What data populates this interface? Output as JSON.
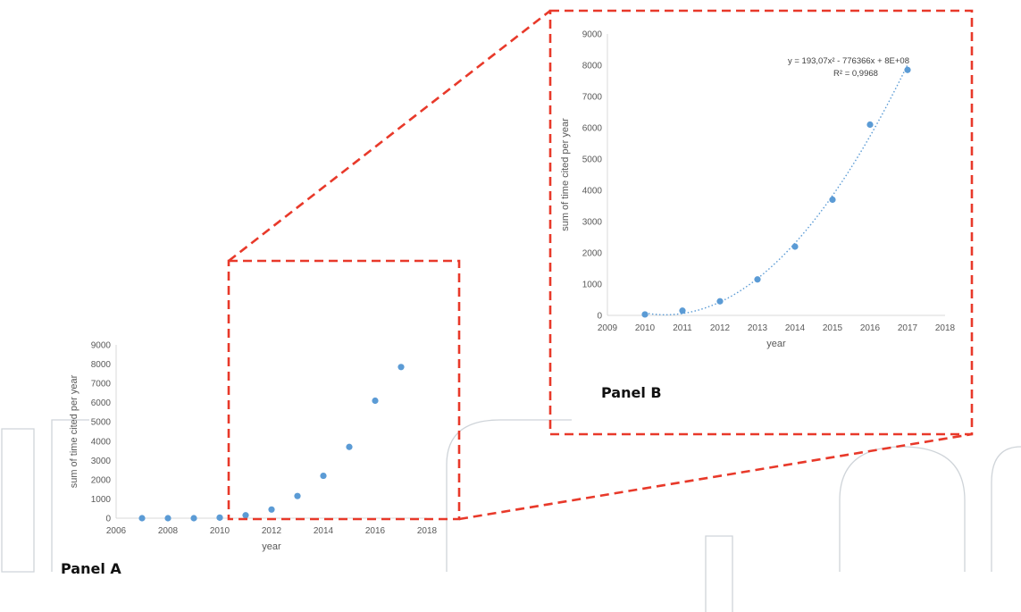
{
  "colors": {
    "point": "#5b9bd5",
    "trend": "#5b9bd5",
    "zoom_box": "#e8392a",
    "axis": "#d9d9d9",
    "text": "#595959"
  },
  "chart_data": [
    {
      "type": "scatter",
      "panel_label": "Panel A",
      "title": "",
      "xlabel": "year",
      "ylabel": "sum of time cited per year",
      "xlim": [
        2006,
        2018
      ],
      "ylim": [
        0,
        9000
      ],
      "x_ticks": [
        2006,
        2008,
        2010,
        2012,
        2014,
        2016,
        2018
      ],
      "y_ticks": [
        0,
        1000,
        2000,
        3000,
        4000,
        5000,
        6000,
        7000,
        8000,
        9000
      ],
      "grid": false,
      "series": [
        {
          "x": [
            2007,
            2008,
            2009,
            2010,
            2011,
            2012,
            2013,
            2014,
            2015,
            2016,
            2017
          ],
          "y": [
            0,
            0,
            0,
            30,
            150,
            450,
            1150,
            2200,
            3700,
            6100,
            7850
          ]
        }
      ]
    },
    {
      "type": "scatter",
      "panel_label": "Panel B",
      "title": "",
      "xlabel": "year",
      "ylabel": "sum of time cited per year",
      "xlim": [
        2009,
        2018
      ],
      "ylim": [
        0,
        9000
      ],
      "x_ticks": [
        2009,
        2010,
        2011,
        2012,
        2013,
        2014,
        2015,
        2016,
        2017,
        2018
      ],
      "y_ticks": [
        0,
        1000,
        2000,
        3000,
        4000,
        5000,
        6000,
        7000,
        8000,
        9000
      ],
      "grid": false,
      "series": [
        {
          "x": [
            2010,
            2011,
            2012,
            2013,
            2014,
            2015,
            2016,
            2017
          ],
          "y": [
            30,
            150,
            450,
            1150,
            2200,
            3700,
            6100,
            7850
          ]
        }
      ],
      "trendline": {
        "type": "polynomial",
        "style": "dotted",
        "equation": "y = 193,07x² - 776366x + 8E+08",
        "r_squared": "R² = 0,9968",
        "x_range": [
          2010,
          2017
        ]
      }
    }
  ]
}
